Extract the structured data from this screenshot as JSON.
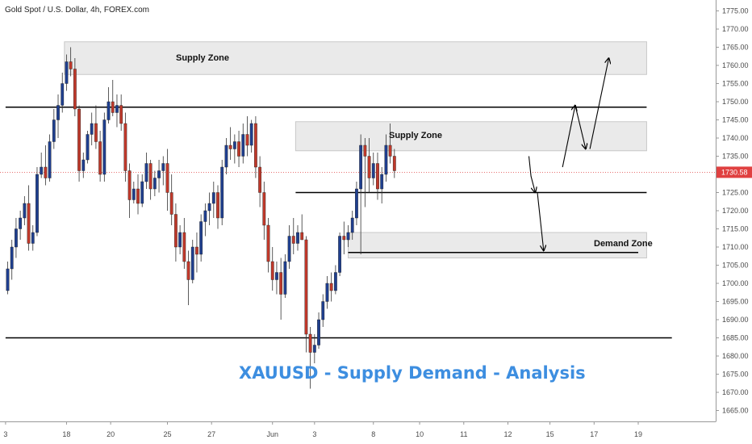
{
  "header": {
    "title": "Gold Spot / U.S. Dollar, 4h, FOREX.com"
  },
  "colors": {
    "bull": "#1f3f8f",
    "bear": "#c0392b",
    "zone_fill": "#e6e6e6",
    "zone_stroke": "#c8c8c8",
    "line": "#000000",
    "current_price": "#e04040",
    "analysis_text": "#3d8ee0"
  },
  "chart_data": {
    "type": "candlestick",
    "title": "Gold Spot / U.S. Dollar, 4h, FOREX.com",
    "ylim": [
      1662,
      1778
    ],
    "y_ticks": [
      1665,
      1670,
      1675,
      1680,
      1685,
      1690,
      1695,
      1700,
      1705,
      1710,
      1715,
      1720,
      1725,
      1730,
      1735,
      1740,
      1745,
      1750,
      1755,
      1760,
      1765,
      1770,
      1775
    ],
    "x_ticks": [
      {
        "label": "3",
        "bar": -0.5
      },
      {
        "label": "18",
        "bar": 14
      },
      {
        "label": "20",
        "bar": 24.5
      },
      {
        "label": "25",
        "bar": 38
      },
      {
        "label": "27",
        "bar": 48.5
      },
      {
        "label": "Jun",
        "bar": 63
      },
      {
        "label": "3",
        "bar": 73
      },
      {
        "label": "8",
        "bar": 87
      },
      {
        "label": "10",
        "bar": 98
      },
      {
        "label": "11",
        "bar": 108.5
      },
      {
        "label": "12",
        "bar": 119
      },
      {
        "label": "15",
        "bar": 129
      },
      {
        "label": "17",
        "bar": 139.5
      },
      {
        "label": "19",
        "bar": 150
      }
    ],
    "current_price": 1730.58,
    "current_price_label": "1730.58",
    "candles": [
      [
        1698,
        1706,
        1697,
        1704
      ],
      [
        1704,
        1712,
        1701,
        1710
      ],
      [
        1710,
        1718,
        1707,
        1715
      ],
      [
        1715,
        1720,
        1712,
        1718
      ],
      [
        1718,
        1724,
        1716,
        1722
      ],
      [
        1722,
        1727,
        1709,
        1711
      ],
      [
        1711,
        1716,
        1709,
        1714
      ],
      [
        1714,
        1732,
        1713,
        1730
      ],
      [
        1730,
        1736,
        1729,
        1732
      ],
      [
        1732,
        1738,
        1727,
        1729
      ],
      [
        1729,
        1741,
        1728,
        1739
      ],
      [
        1739,
        1748,
        1737,
        1745
      ],
      [
        1745,
        1752,
        1740,
        1749
      ],
      [
        1749,
        1758,
        1747,
        1755
      ],
      [
        1755,
        1763,
        1753,
        1761
      ],
      [
        1761,
        1765,
        1757,
        1759
      ],
      [
        1759,
        1762,
        1746,
        1748
      ],
      [
        1748,
        1749,
        1728,
        1731
      ],
      [
        1731,
        1736,
        1729,
        1734
      ],
      [
        1734,
        1742,
        1733,
        1741
      ],
      [
        1741,
        1747,
        1738,
        1744
      ],
      [
        1744,
        1749,
        1737,
        1739
      ],
      [
        1739,
        1742,
        1728,
        1730
      ],
      [
        1730,
        1747,
        1728,
        1745
      ],
      [
        1745,
        1754,
        1744,
        1750
      ],
      [
        1750,
        1756,
        1746,
        1747
      ],
      [
        1747,
        1752,
        1743,
        1749
      ],
      [
        1749,
        1752,
        1742,
        1744
      ],
      [
        1744,
        1747,
        1728,
        1731
      ],
      [
        1731,
        1733,
        1718,
        1723
      ],
      [
        1723,
        1728,
        1722,
        1726
      ],
      [
        1726,
        1730,
        1719,
        1722
      ],
      [
        1722,
        1730,
        1721,
        1728
      ],
      [
        1728,
        1736,
        1726,
        1733
      ],
      [
        1733,
        1734,
        1723,
        1726
      ],
      [
        1726,
        1731,
        1724,
        1729
      ],
      [
        1729,
        1734,
        1725,
        1731
      ],
      [
        1731,
        1735,
        1727,
        1733
      ],
      [
        1733,
        1737,
        1720,
        1725
      ],
      [
        1725,
        1730,
        1716,
        1719
      ],
      [
        1719,
        1722,
        1706,
        1710
      ],
      [
        1710,
        1716,
        1708,
        1714
      ],
      [
        1714,
        1718,
        1704,
        1706
      ],
      [
        1706,
        1709,
        1694,
        1701
      ],
      [
        1701,
        1712,
        1700,
        1710
      ],
      [
        1710,
        1714,
        1703,
        1708
      ],
      [
        1708,
        1719,
        1706,
        1717
      ],
      [
        1717,
        1722,
        1713,
        1720
      ],
      [
        1720,
        1725,
        1716,
        1722
      ],
      [
        1722,
        1728,
        1718,
        1725
      ],
      [
        1725,
        1727,
        1715,
        1718
      ],
      [
        1718,
        1734,
        1716,
        1732
      ],
      [
        1732,
        1740,
        1730,
        1738
      ],
      [
        1738,
        1743,
        1734,
        1737
      ],
      [
        1737,
        1741,
        1733,
        1739
      ],
      [
        1739,
        1742,
        1732,
        1735
      ],
      [
        1735,
        1744,
        1733,
        1741
      ],
      [
        1741,
        1746,
        1735,
        1738
      ],
      [
        1738,
        1745,
        1736,
        1744
      ],
      [
        1744,
        1746,
        1729,
        1732
      ],
      [
        1732,
        1735,
        1721,
        1725
      ],
      [
        1725,
        1728,
        1712,
        1716
      ],
      [
        1716,
        1718,
        1703,
        1706
      ],
      [
        1706,
        1710,
        1698,
        1701
      ],
      [
        1701,
        1706,
        1697,
        1703
      ],
      [
        1703,
        1707,
        1690,
        1697
      ],
      [
        1697,
        1708,
        1696,
        1706
      ],
      [
        1706,
        1716,
        1704,
        1713
      ],
      [
        1713,
        1718,
        1708,
        1711
      ],
      [
        1711,
        1716,
        1709,
        1714
      ],
      [
        1714,
        1719,
        1712,
        1712
      ],
      [
        1712,
        1713,
        1681,
        1686
      ],
      [
        1686,
        1688,
        1671,
        1681
      ],
      [
        1681,
        1686,
        1678,
        1683
      ],
      [
        1683,
        1692,
        1682,
        1690
      ],
      [
        1690,
        1697,
        1688,
        1695
      ],
      [
        1695,
        1702,
        1693,
        1700
      ],
      [
        1700,
        1703,
        1695,
        1698
      ],
      [
        1698,
        1705,
        1697,
        1703
      ],
      [
        1703,
        1714,
        1702,
        1713
      ],
      [
        1713,
        1717,
        1708,
        1712
      ],
      [
        1712,
        1716,
        1710,
        1714
      ],
      [
        1714,
        1720,
        1712,
        1718
      ],
      [
        1718,
        1728,
        1716,
        1726
      ],
      [
        1726,
        1741,
        1708,
        1738
      ],
      [
        1738,
        1740,
        1721,
        1735
      ],
      [
        1735,
        1740,
        1725,
        1729
      ],
      [
        1729,
        1736,
        1727,
        1733
      ],
      [
        1733,
        1736,
        1723,
        1726
      ],
      [
        1726,
        1732,
        1722,
        1730
      ],
      [
        1730,
        1741,
        1728,
        1738
      ],
      [
        1738,
        1744,
        1733,
        1735
      ],
      [
        1735,
        1737,
        1729,
        1731
      ]
    ],
    "zones": [
      {
        "name": "Supply Zone",
        "bar_from": 13.5,
        "bar_to": 152,
        "top": 1766.5,
        "bottom": 1757.5
      },
      {
        "name": "Supply Zone",
        "bar_from": 68.5,
        "bar_to": 152,
        "top": 1744.5,
        "bottom": 1736.5
      },
      {
        "name": "Demand Zone",
        "bar_from": 81,
        "bar_to": 152,
        "top": 1714,
        "bottom": 1707
      }
    ],
    "lines": [
      {
        "price": 1748.5,
        "bar_from": -0.5,
        "bar_to": 152
      },
      {
        "price": 1725,
        "bar_from": 68.5,
        "bar_to": 152
      },
      {
        "price": 1708.5,
        "bar_from": 81,
        "bar_to": 150
      },
      {
        "price": 1685,
        "bar_from": -0.5,
        "bar_to": 158
      }
    ],
    "arrows": [
      [
        [
          124,
          1735
        ],
        [
          124.5,
          1729.5
        ],
        [
          125.5,
          1725
        ]
      ],
      [
        [
          126,
          1725
        ],
        [
          127.5,
          1709
        ]
      ],
      [
        [
          132,
          1732
        ],
        [
          135,
          1749
        ]
      ],
      [
        [
          135,
          1749
        ],
        [
          137.5,
          1737
        ]
      ],
      [
        [
          138.5,
          1737
        ],
        [
          143,
          1762
        ]
      ]
    ],
    "annotations": {
      "supply_zone_1": "Supply Zone",
      "supply_zone_2": "Supply Zone",
      "demand_zone": "Demand Zone",
      "analysis_title": "XAUUSD - Supply Demand - Analysis"
    }
  }
}
